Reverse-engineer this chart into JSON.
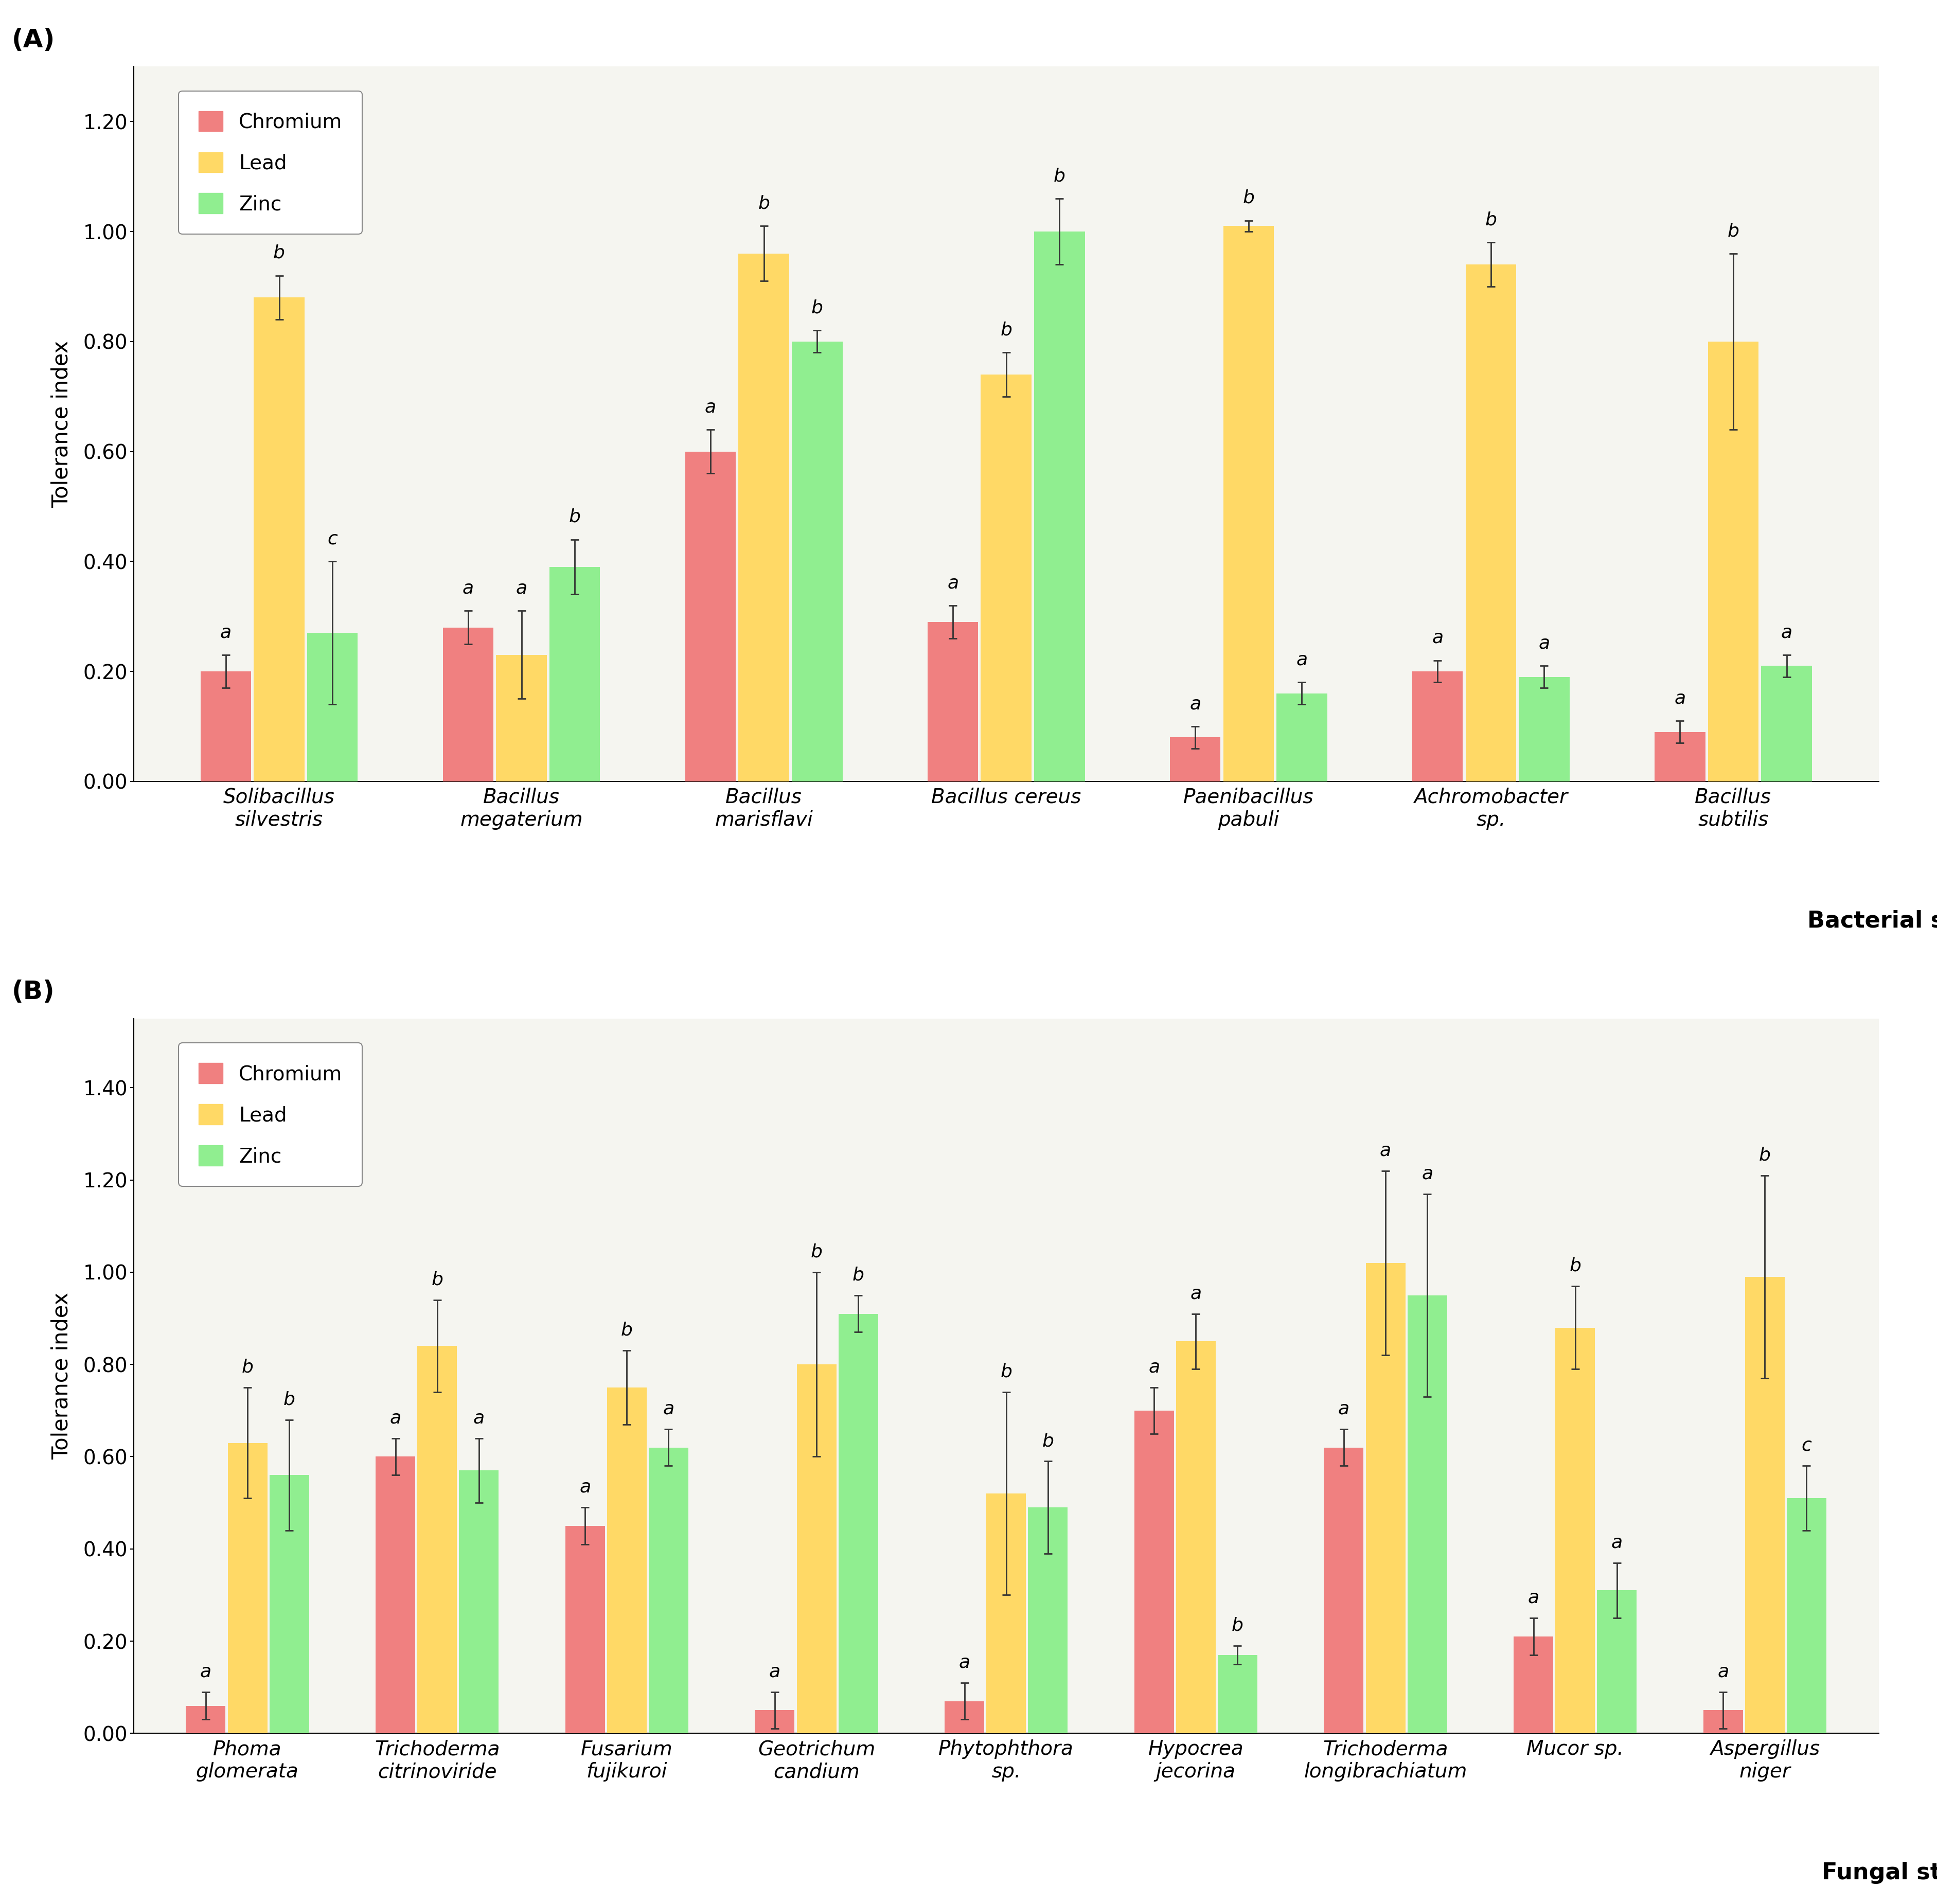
{
  "chart_A": {
    "categories": [
      "Solibacillus\nsilvestris",
      "Bacillus\nmegaterium",
      "Bacillus\nmarisflavi",
      "Bacillus cereus",
      "Paenibacillus\npabuli",
      "Achromobacter\nsp.",
      "Bacillus\nsubtilis"
    ],
    "chromium": [
      0.2,
      0.28,
      0.6,
      0.29,
      0.08,
      0.2,
      0.09
    ],
    "lead": [
      0.88,
      0.23,
      0.96,
      0.74,
      1.01,
      0.94,
      0.8
    ],
    "zinc": [
      0.27,
      0.39,
      0.8,
      1.0,
      0.16,
      0.19,
      0.21
    ],
    "chromium_err": [
      0.03,
      0.03,
      0.04,
      0.03,
      0.02,
      0.02,
      0.02
    ],
    "lead_err": [
      0.04,
      0.08,
      0.05,
      0.04,
      0.01,
      0.04,
      0.16
    ],
    "zinc_err": [
      0.13,
      0.05,
      0.02,
      0.06,
      0.02,
      0.02,
      0.02
    ],
    "chromium_labels": [
      "a",
      "a",
      "a",
      "a",
      "a",
      "a",
      "a"
    ],
    "lead_labels": [
      "b",
      "a",
      "b",
      "b",
      "b",
      "b",
      "b"
    ],
    "zinc_labels": [
      "c",
      "b",
      "b",
      "b",
      "a",
      "a",
      "a"
    ],
    "ylabel": "Tolerance index",
    "xlabel": "Bacterial strains",
    "ylim": [
      0.0,
      1.3
    ],
    "yticks": [
      0.0,
      0.2,
      0.4,
      0.6,
      0.8,
      1.0,
      1.2
    ],
    "panel_label": "(A)"
  },
  "chart_B": {
    "categories": [
      "Phoma\nglomerata",
      "Trichoderma\ncitrinoviride",
      "Fusarium\nfujikuroi",
      "Geotrichum\ncandium",
      "Phytophthora\nsp.",
      "Hypocrea\njecorina",
      "Trichoderma\nlongibrachiatum",
      "Mucor sp.",
      "Aspergillus\nniger"
    ],
    "chromium": [
      0.06,
      0.6,
      0.45,
      0.05,
      0.07,
      0.7,
      0.62,
      0.21,
      0.05
    ],
    "lead": [
      0.63,
      0.84,
      0.75,
      0.8,
      0.52,
      0.85,
      1.02,
      0.88,
      0.99
    ],
    "zinc": [
      0.56,
      0.57,
      0.62,
      0.91,
      0.49,
      0.17,
      0.95,
      0.31,
      0.51
    ],
    "chromium_err": [
      0.03,
      0.04,
      0.04,
      0.04,
      0.04,
      0.05,
      0.04,
      0.04,
      0.04
    ],
    "lead_err": [
      0.12,
      0.1,
      0.08,
      0.2,
      0.22,
      0.06,
      0.2,
      0.09,
      0.22
    ],
    "zinc_err": [
      0.12,
      0.07,
      0.04,
      0.04,
      0.1,
      0.02,
      0.22,
      0.06,
      0.07
    ],
    "chromium_labels": [
      "a",
      "a",
      "a",
      "a",
      "a",
      "a",
      "a",
      "a",
      "a"
    ],
    "lead_labels": [
      "b",
      "b",
      "b",
      "b",
      "b",
      "a",
      "a",
      "b",
      "b"
    ],
    "zinc_labels": [
      "b",
      "a",
      "a",
      "b",
      "b",
      "b",
      "a",
      "a",
      "c"
    ],
    "ylabel": "Tolerance index",
    "xlabel": "Fungal strains",
    "ylim": [
      0.0,
      1.55
    ],
    "yticks": [
      0.0,
      0.2,
      0.4,
      0.6,
      0.8,
      1.0,
      1.2,
      1.4
    ],
    "panel_label": "(B)"
  },
  "colors": {
    "chromium": "#F08080",
    "lead": "#FFD966",
    "zinc": "#90EE90"
  },
  "legend_labels": [
    "Chromium",
    "Lead",
    "Zinc"
  ],
  "bar_width": 0.22,
  "label_fontsize": 30,
  "tick_fontsize": 28,
  "annotation_fontsize": 26,
  "legend_fontsize": 28,
  "panel_fontsize": 36,
  "xlabel_fontsize": 32
}
